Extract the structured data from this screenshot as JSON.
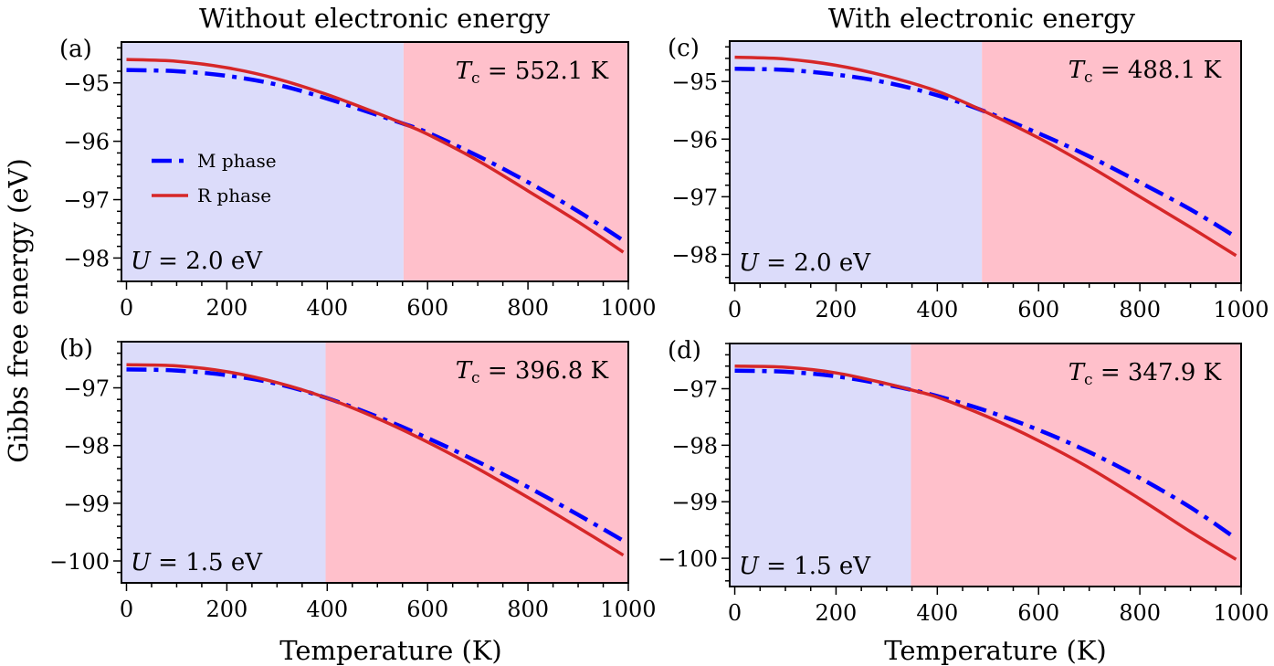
{
  "figure": {
    "column_titles": [
      "Without electronic energy",
      "With electronic energy"
    ],
    "ylabel": "Gibbs free energy (eV)",
    "xlabel": "Temperature (K)",
    "colors": {
      "m_phase": "#0000ff",
      "r_phase": "#d62728",
      "low_region": "#dcdcfa",
      "high_region": "#ffc0cb"
    },
    "legend": [
      "M phase",
      "R phase"
    ],
    "legend_placement": "center-left of panel (a)"
  },
  "chart_data": [
    {
      "type": "line",
      "panel": "(a)",
      "title": "Without electronic energy",
      "annotation_tc": "Tc = 552.1 K",
      "tc": 552.1,
      "annotation_u": "U = 2.0 eV",
      "xlabel": "",
      "ylabel": "Gibbs free energy (eV)",
      "xlim": [
        -10,
        1000
      ],
      "ylim": [
        -98.4,
        -94.3
      ],
      "xticks": [
        0,
        200,
        400,
        600,
        800,
        1000
      ],
      "yticks": [
        -95,
        -96,
        -97,
        -98
      ],
      "x": [
        0,
        100,
        200,
        300,
        400,
        500,
        552.1,
        600,
        700,
        800,
        900,
        990
      ],
      "series": [
        {
          "name": "M phase",
          "style": "dash-dot",
          "values": [
            -94.78,
            -94.8,
            -94.88,
            -95.03,
            -95.27,
            -95.55,
            -95.7,
            -95.85,
            -96.25,
            -96.7,
            -97.2,
            -97.7
          ]
        },
        {
          "name": "R phase",
          "style": "solid",
          "values": [
            -94.6,
            -94.63,
            -94.74,
            -94.93,
            -95.2,
            -95.52,
            -95.7,
            -95.88,
            -96.33,
            -96.85,
            -97.38,
            -97.9
          ]
        }
      ]
    },
    {
      "type": "line",
      "panel": "(c)",
      "title": "With electronic energy",
      "annotation_tc": "Tc = 488.1 K",
      "tc": 488.1,
      "annotation_u": "U = 2.0 eV",
      "xlabel": "",
      "ylabel": "",
      "xlim": [
        -10,
        1000
      ],
      "ylim": [
        -98.5,
        -94.3
      ],
      "xticks": [
        0,
        200,
        400,
        600,
        800,
        1000
      ],
      "yticks": [
        -95,
        -96,
        -97,
        -98
      ],
      "x": [
        0,
        100,
        200,
        300,
        400,
        488.1,
        600,
        700,
        800,
        900,
        990
      ],
      "series": [
        {
          "name": "M phase",
          "style": "dash-dot",
          "values": [
            -94.78,
            -94.8,
            -94.88,
            -95.02,
            -95.24,
            -95.5,
            -95.9,
            -96.3,
            -96.75,
            -97.22,
            -97.7
          ]
        },
        {
          "name": "R phase",
          "style": "solid",
          "values": [
            -94.58,
            -94.61,
            -94.72,
            -94.91,
            -95.17,
            -95.5,
            -95.98,
            -96.47,
            -97.0,
            -97.53,
            -98.02
          ]
        }
      ]
    },
    {
      "type": "line",
      "panel": "(b)",
      "title": "",
      "annotation_tc": "Tc = 396.8 K",
      "tc": 396.8,
      "annotation_u": "U = 1.5 eV",
      "xlabel": "Temperature (K)",
      "ylabel": "Gibbs free energy (eV)",
      "xlim": [
        -10,
        1000
      ],
      "ylim": [
        -100.38,
        -96.2
      ],
      "xticks": [
        0,
        200,
        400,
        600,
        800,
        1000
      ],
      "yticks": [
        -97,
        -98,
        -99,
        -100
      ],
      "x": [
        0,
        100,
        200,
        300,
        396.8,
        500,
        600,
        700,
        800,
        900,
        990
      ],
      "series": [
        {
          "name": "M phase",
          "style": "dash-dot",
          "values": [
            -96.68,
            -96.7,
            -96.78,
            -96.93,
            -97.17,
            -97.5,
            -97.87,
            -98.28,
            -98.72,
            -99.2,
            -99.65
          ]
        },
        {
          "name": "R phase",
          "style": "solid",
          "values": [
            -96.6,
            -96.62,
            -96.72,
            -96.91,
            -97.17,
            -97.53,
            -97.94,
            -98.4,
            -98.9,
            -99.42,
            -99.9
          ]
        }
      ]
    },
    {
      "type": "line",
      "panel": "(d)",
      "title": "",
      "annotation_tc": "Tc = 347.9 K",
      "tc": 347.9,
      "annotation_u": "U = 1.5 eV",
      "xlabel": "Temperature (K)",
      "ylabel": "",
      "xlim": [
        -10,
        1000
      ],
      "ylim": [
        -100.5,
        -96.2
      ],
      "xticks": [
        0,
        200,
        400,
        600,
        800,
        1000
      ],
      "yticks": [
        -97,
        -98,
        -99,
        -100
      ],
      "x": [
        0,
        100,
        200,
        300,
        347.9,
        400,
        500,
        600,
        700,
        800,
        900,
        990
      ],
      "series": [
        {
          "name": "M phase",
          "style": "dash-dot",
          "values": [
            -96.68,
            -96.7,
            -96.78,
            -96.93,
            -97.02,
            -97.13,
            -97.4,
            -97.73,
            -98.12,
            -98.58,
            -99.1,
            -99.65
          ]
        },
        {
          "name": "R phase",
          "style": "solid",
          "values": [
            -96.6,
            -96.62,
            -96.72,
            -96.91,
            -97.02,
            -97.15,
            -97.5,
            -97.92,
            -98.4,
            -98.95,
            -99.53,
            -100.02
          ]
        }
      ]
    }
  ]
}
